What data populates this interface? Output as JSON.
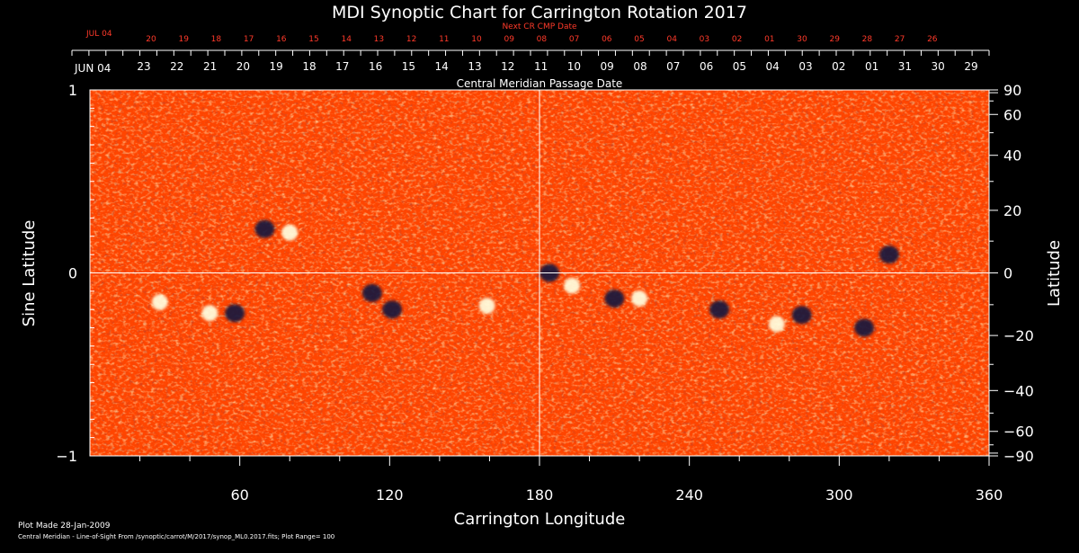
{
  "title": "MDI Synoptic Chart for Carrington Rotation 2017",
  "colors": {
    "background": "#000000",
    "text": "#ffffff",
    "accent": "#ff3a2a",
    "map_base": "#ff4500",
    "positive_polarity": "#ffffe0",
    "negative_polarity": "#14143c"
  },
  "top_axis": {
    "label": "Next CR CMP Date",
    "month_label": "JUL 04",
    "ticks": [
      "20",
      "19",
      "18",
      "17",
      "16",
      "15",
      "14",
      "13",
      "12",
      "11",
      "10",
      "09",
      "08",
      "07",
      "06",
      "05",
      "04",
      "03",
      "02",
      "01",
      "30",
      "29",
      "28",
      "27",
      "26"
    ]
  },
  "date_axis": {
    "label": "Central Meridian Passage Date",
    "month_label": "JUN 04",
    "ticks": [
      "23",
      "22",
      "21",
      "20",
      "19",
      "18",
      "17",
      "16",
      "15",
      "14",
      "13",
      "12",
      "11",
      "10",
      "09",
      "08",
      "07",
      "06",
      "05",
      "04",
      "03",
      "02",
      "01",
      "31",
      "30",
      "29"
    ]
  },
  "footer": {
    "plot_made": "Plot Made 28-Jan-2009",
    "source": "Central Meridian - Line-of-Sight From /synoptic/carrot/M/2017/synop_ML0.2017.fits; Plot Range=  100"
  },
  "chart_data": {
    "type": "heatmap",
    "title": "MDI Synoptic Chart for Carrington Rotation 2017",
    "xlabel": "Carrington Longitude",
    "ylabel": "Sine Latitude",
    "y2label": "Latitude",
    "xlim": [
      0,
      360
    ],
    "ylim": [
      -1,
      1
    ],
    "x_ticks": [
      60,
      120,
      180,
      240,
      300,
      360
    ],
    "x_tick_labels": [
      "60",
      "120",
      "180",
      "240",
      "300",
      "360"
    ],
    "y_ticks": [
      -1,
      0,
      1
    ],
    "y_tick_labels": [
      "−1",
      "0",
      "1"
    ],
    "y2_ticks": [
      90,
      60,
      40,
      20,
      0,
      -20,
      -40,
      -60,
      -90
    ],
    "y2_tick_labels": [
      "90",
      "60",
      "40",
      "20",
      "0",
      "−20",
      "−40",
      "−60",
      "−90"
    ],
    "crosshair": {
      "x": 180,
      "y": 0
    },
    "plot_range": 100,
    "regions": [
      {
        "lon": 70,
        "sinlat": 0.24,
        "polarity": "negative"
      },
      {
        "lon": 80,
        "sinlat": 0.22,
        "polarity": "positive"
      },
      {
        "lon": 28,
        "sinlat": -0.16,
        "polarity": "positive"
      },
      {
        "lon": 48,
        "sinlat": -0.22,
        "polarity": "positive"
      },
      {
        "lon": 58,
        "sinlat": -0.22,
        "polarity": "negative"
      },
      {
        "lon": 113,
        "sinlat": -0.11,
        "polarity": "negative"
      },
      {
        "lon": 121,
        "sinlat": -0.2,
        "polarity": "negative"
      },
      {
        "lon": 159,
        "sinlat": -0.18,
        "polarity": "positive"
      },
      {
        "lon": 184,
        "sinlat": 0.0,
        "polarity": "negative"
      },
      {
        "lon": 193,
        "sinlat": -0.07,
        "polarity": "positive"
      },
      {
        "lon": 210,
        "sinlat": -0.14,
        "polarity": "negative"
      },
      {
        "lon": 220,
        "sinlat": -0.14,
        "polarity": "positive"
      },
      {
        "lon": 252,
        "sinlat": -0.2,
        "polarity": "negative"
      },
      {
        "lon": 275,
        "sinlat": -0.28,
        "polarity": "positive"
      },
      {
        "lon": 285,
        "sinlat": -0.23,
        "polarity": "negative"
      },
      {
        "lon": 320,
        "sinlat": 0.1,
        "polarity": "negative"
      },
      {
        "lon": 310,
        "sinlat": -0.3,
        "polarity": "negative"
      }
    ]
  }
}
